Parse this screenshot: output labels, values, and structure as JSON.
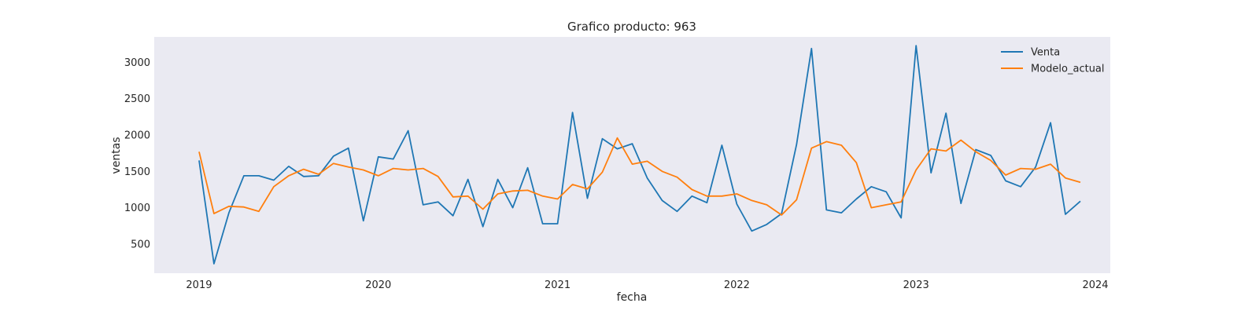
{
  "chart_data": {
    "type": "line",
    "title": "Grafico producto: 963",
    "xlabel": "fecha",
    "ylabel": "ventas",
    "x_start": "2019-01",
    "x_frequency": "monthly",
    "xlim": [
      "2018-10",
      "2024-02"
    ],
    "ylim": [
      100,
      3350
    ],
    "x_ticks": [
      {
        "date": "2019-01",
        "label": "2019"
      },
      {
        "date": "2020-01",
        "label": "2020"
      },
      {
        "date": "2021-01",
        "label": "2021"
      },
      {
        "date": "2022-01",
        "label": "2022"
      },
      {
        "date": "2023-01",
        "label": "2023"
      },
      {
        "date": "2024-01",
        "label": "2024"
      }
    ],
    "y_ticks": [
      500,
      1000,
      1500,
      2000,
      2500,
      3000
    ],
    "grid": false,
    "legend_position": "top-right",
    "series": [
      {
        "name": "Venta",
        "color": "#1f77b4",
        "values": [
          1650,
          230,
          930,
          1440,
          1440,
          1380,
          1570,
          1430,
          1440,
          1710,
          1820,
          820,
          1700,
          1670,
          2060,
          1040,
          1080,
          890,
          1390,
          740,
          1390,
          1000,
          1550,
          780,
          780,
          2310,
          1130,
          1950,
          1810,
          1880,
          1410,
          1100,
          950,
          1160,
          1070,
          1860,
          1050,
          680,
          770,
          920,
          1870,
          3190,
          970,
          930,
          1120,
          1290,
          1220,
          860,
          3230,
          1480,
          2300,
          1060,
          1800,
          1720,
          1370,
          1290,
          1560,
          2170,
          910,
          1090
        ]
      },
      {
        "name": "Modelo_actual",
        "color": "#ff7f0e",
        "values": [
          1770,
          920,
          1020,
          1010,
          950,
          1290,
          1440,
          1530,
          1460,
          1610,
          1560,
          1520,
          1440,
          1540,
          1520,
          1540,
          1430,
          1150,
          1160,
          980,
          1190,
          1230,
          1240,
          1160,
          1120,
          1320,
          1260,
          1490,
          1960,
          1600,
          1640,
          1500,
          1420,
          1250,
          1160,
          1160,
          1190,
          1100,
          1040,
          900,
          1110,
          1820,
          1910,
          1860,
          1620,
          1000,
          1040,
          1080,
          1520,
          1810,
          1780,
          1930,
          1770,
          1650,
          1450,
          1540,
          1530,
          1600,
          1410,
          1350
        ]
      }
    ]
  }
}
